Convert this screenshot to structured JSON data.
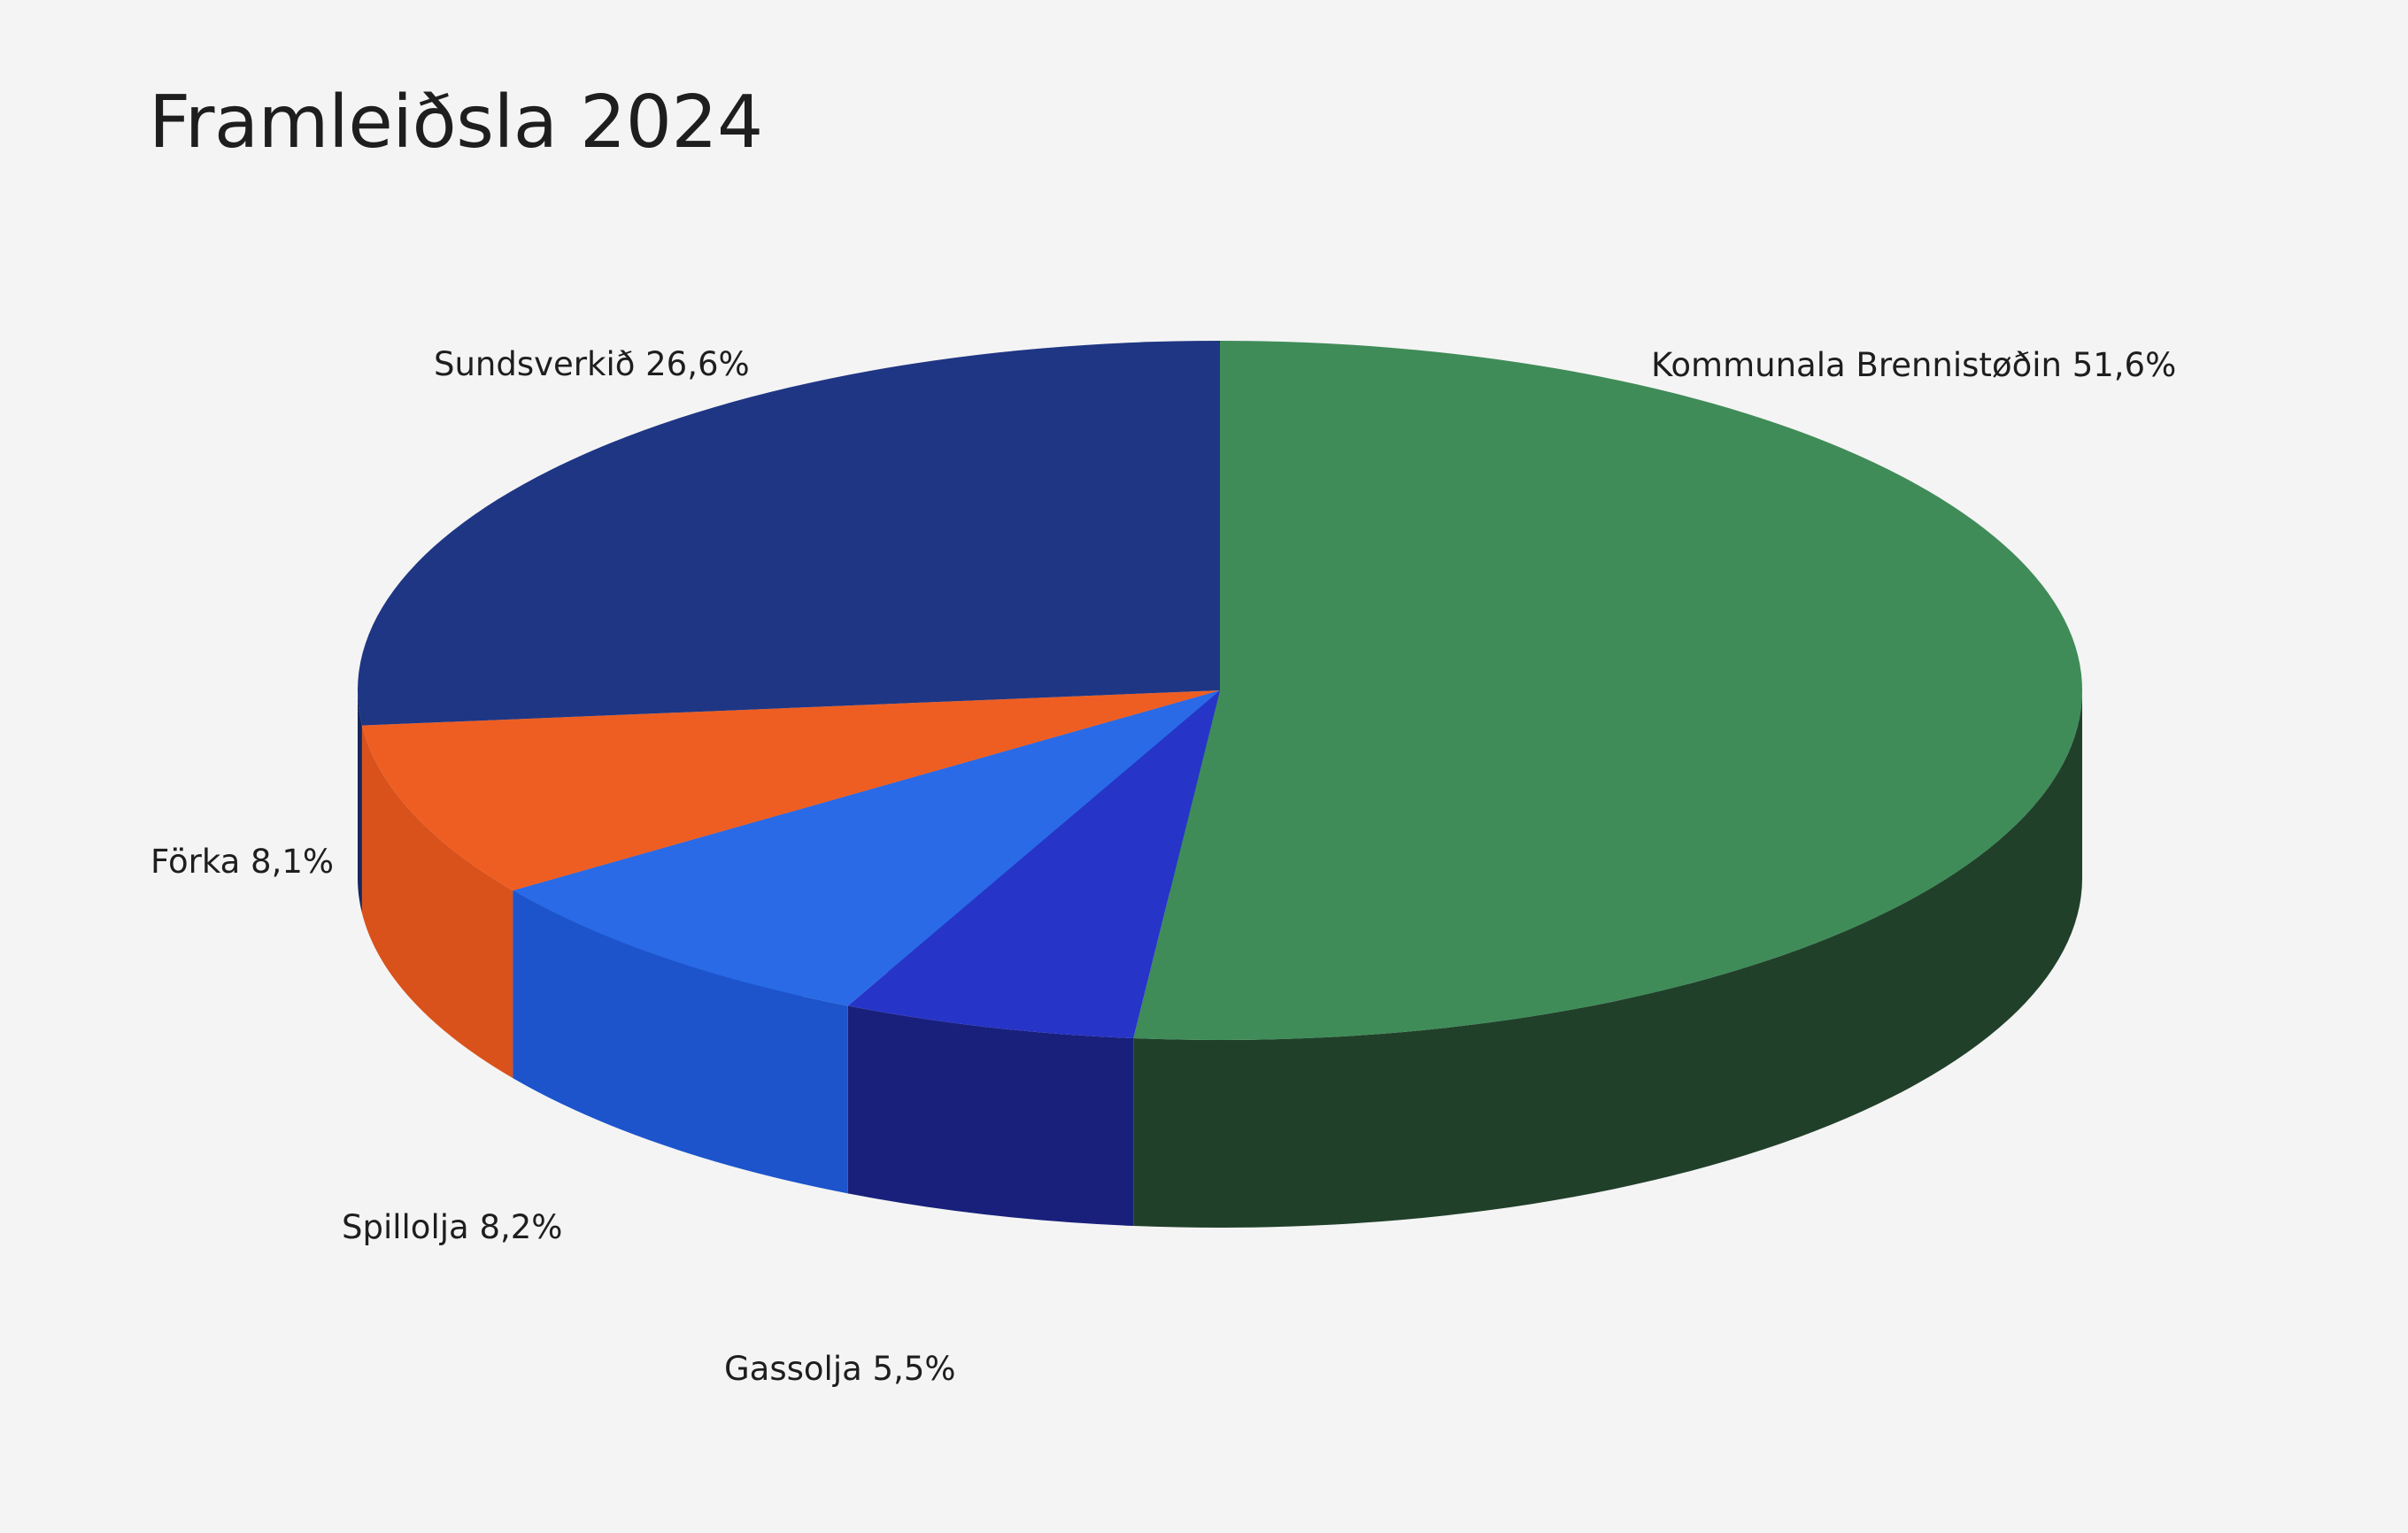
{
  "chart_data": {
    "type": "pie",
    "title": "Framleiðsla 2024",
    "style": "3d",
    "slices": [
      {
        "label": "Kommunala Brennistøðin",
        "value": 51.6,
        "value_label": "51,6%",
        "color": "#3f8c58",
        "side_color": "#21402a"
      },
      {
        "label": "Gassolja",
        "value": 5.5,
        "value_label": "5,5%",
        "color": "#2634c8",
        "side_color": "#18207c"
      },
      {
        "label": "Spillolja",
        "value": 8.2,
        "value_label": "8,2%",
        "color": "#2a6ae6",
        "side_color": "#1d54cc"
      },
      {
        "label": "Förka",
        "value": 8.1,
        "value_label": "8,1%",
        "color": "#ee5e22",
        "side_color": "#d9521c"
      },
      {
        "label": "Sundsverkið",
        "value": 26.6,
        "value_label": "26,6%",
        "color": "#1f3684",
        "side_color": "#16275e"
      }
    ],
    "legend": "none"
  }
}
